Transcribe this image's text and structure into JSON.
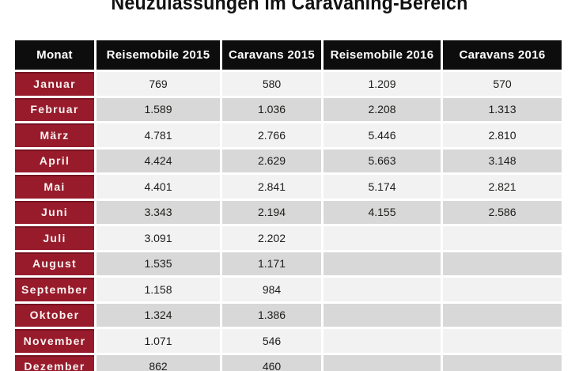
{
  "chart_data": {
    "type": "table",
    "title": "Neuzulassungen im Caravaning-Bereich",
    "columns": [
      "Monat",
      "Reisemobile 2015",
      "Caravans 2015",
      "Reisemobile 2016",
      "Caravans 2016"
    ],
    "rows": [
      [
        "Januar",
        "769",
        "580",
        "1.209",
        "570"
      ],
      [
        "Februar",
        "1.589",
        "1.036",
        "2.208",
        "1.313"
      ],
      [
        "März",
        "4.781",
        "2.766",
        "5.446",
        "2.810"
      ],
      [
        "April",
        "4.424",
        "2.629",
        "5.663",
        "3.148"
      ],
      [
        "Mai",
        "4.401",
        "2.841",
        "5.174",
        "2.821"
      ],
      [
        "Juni",
        "3.343",
        "2.194",
        "4.155",
        "2.586"
      ],
      [
        "Juli",
        "3.091",
        "2.202",
        "",
        ""
      ],
      [
        "August",
        "1.535",
        "1.171",
        "",
        ""
      ],
      [
        "September",
        "1.158",
        "984",
        "",
        ""
      ],
      [
        "Oktober",
        "1.324",
        "1.386",
        "",
        ""
      ],
      [
        "November",
        "1.071",
        "546",
        "",
        ""
      ],
      [
        "Dezember",
        "862",
        "460",
        "",
        ""
      ]
    ],
    "layout": {
      "legend": "none",
      "grid": "white-gaps-between-cells",
      "row_striping": [
        "light",
        "dark"
      ]
    }
  },
  "colors": {
    "header_bg": "#0d0d0d",
    "month_bg": "#981b2c",
    "row_light": "#f2f2f2",
    "row_dark": "#d8d8d8",
    "title_color": "#121212",
    "value_color": "#1c1c1a"
  }
}
